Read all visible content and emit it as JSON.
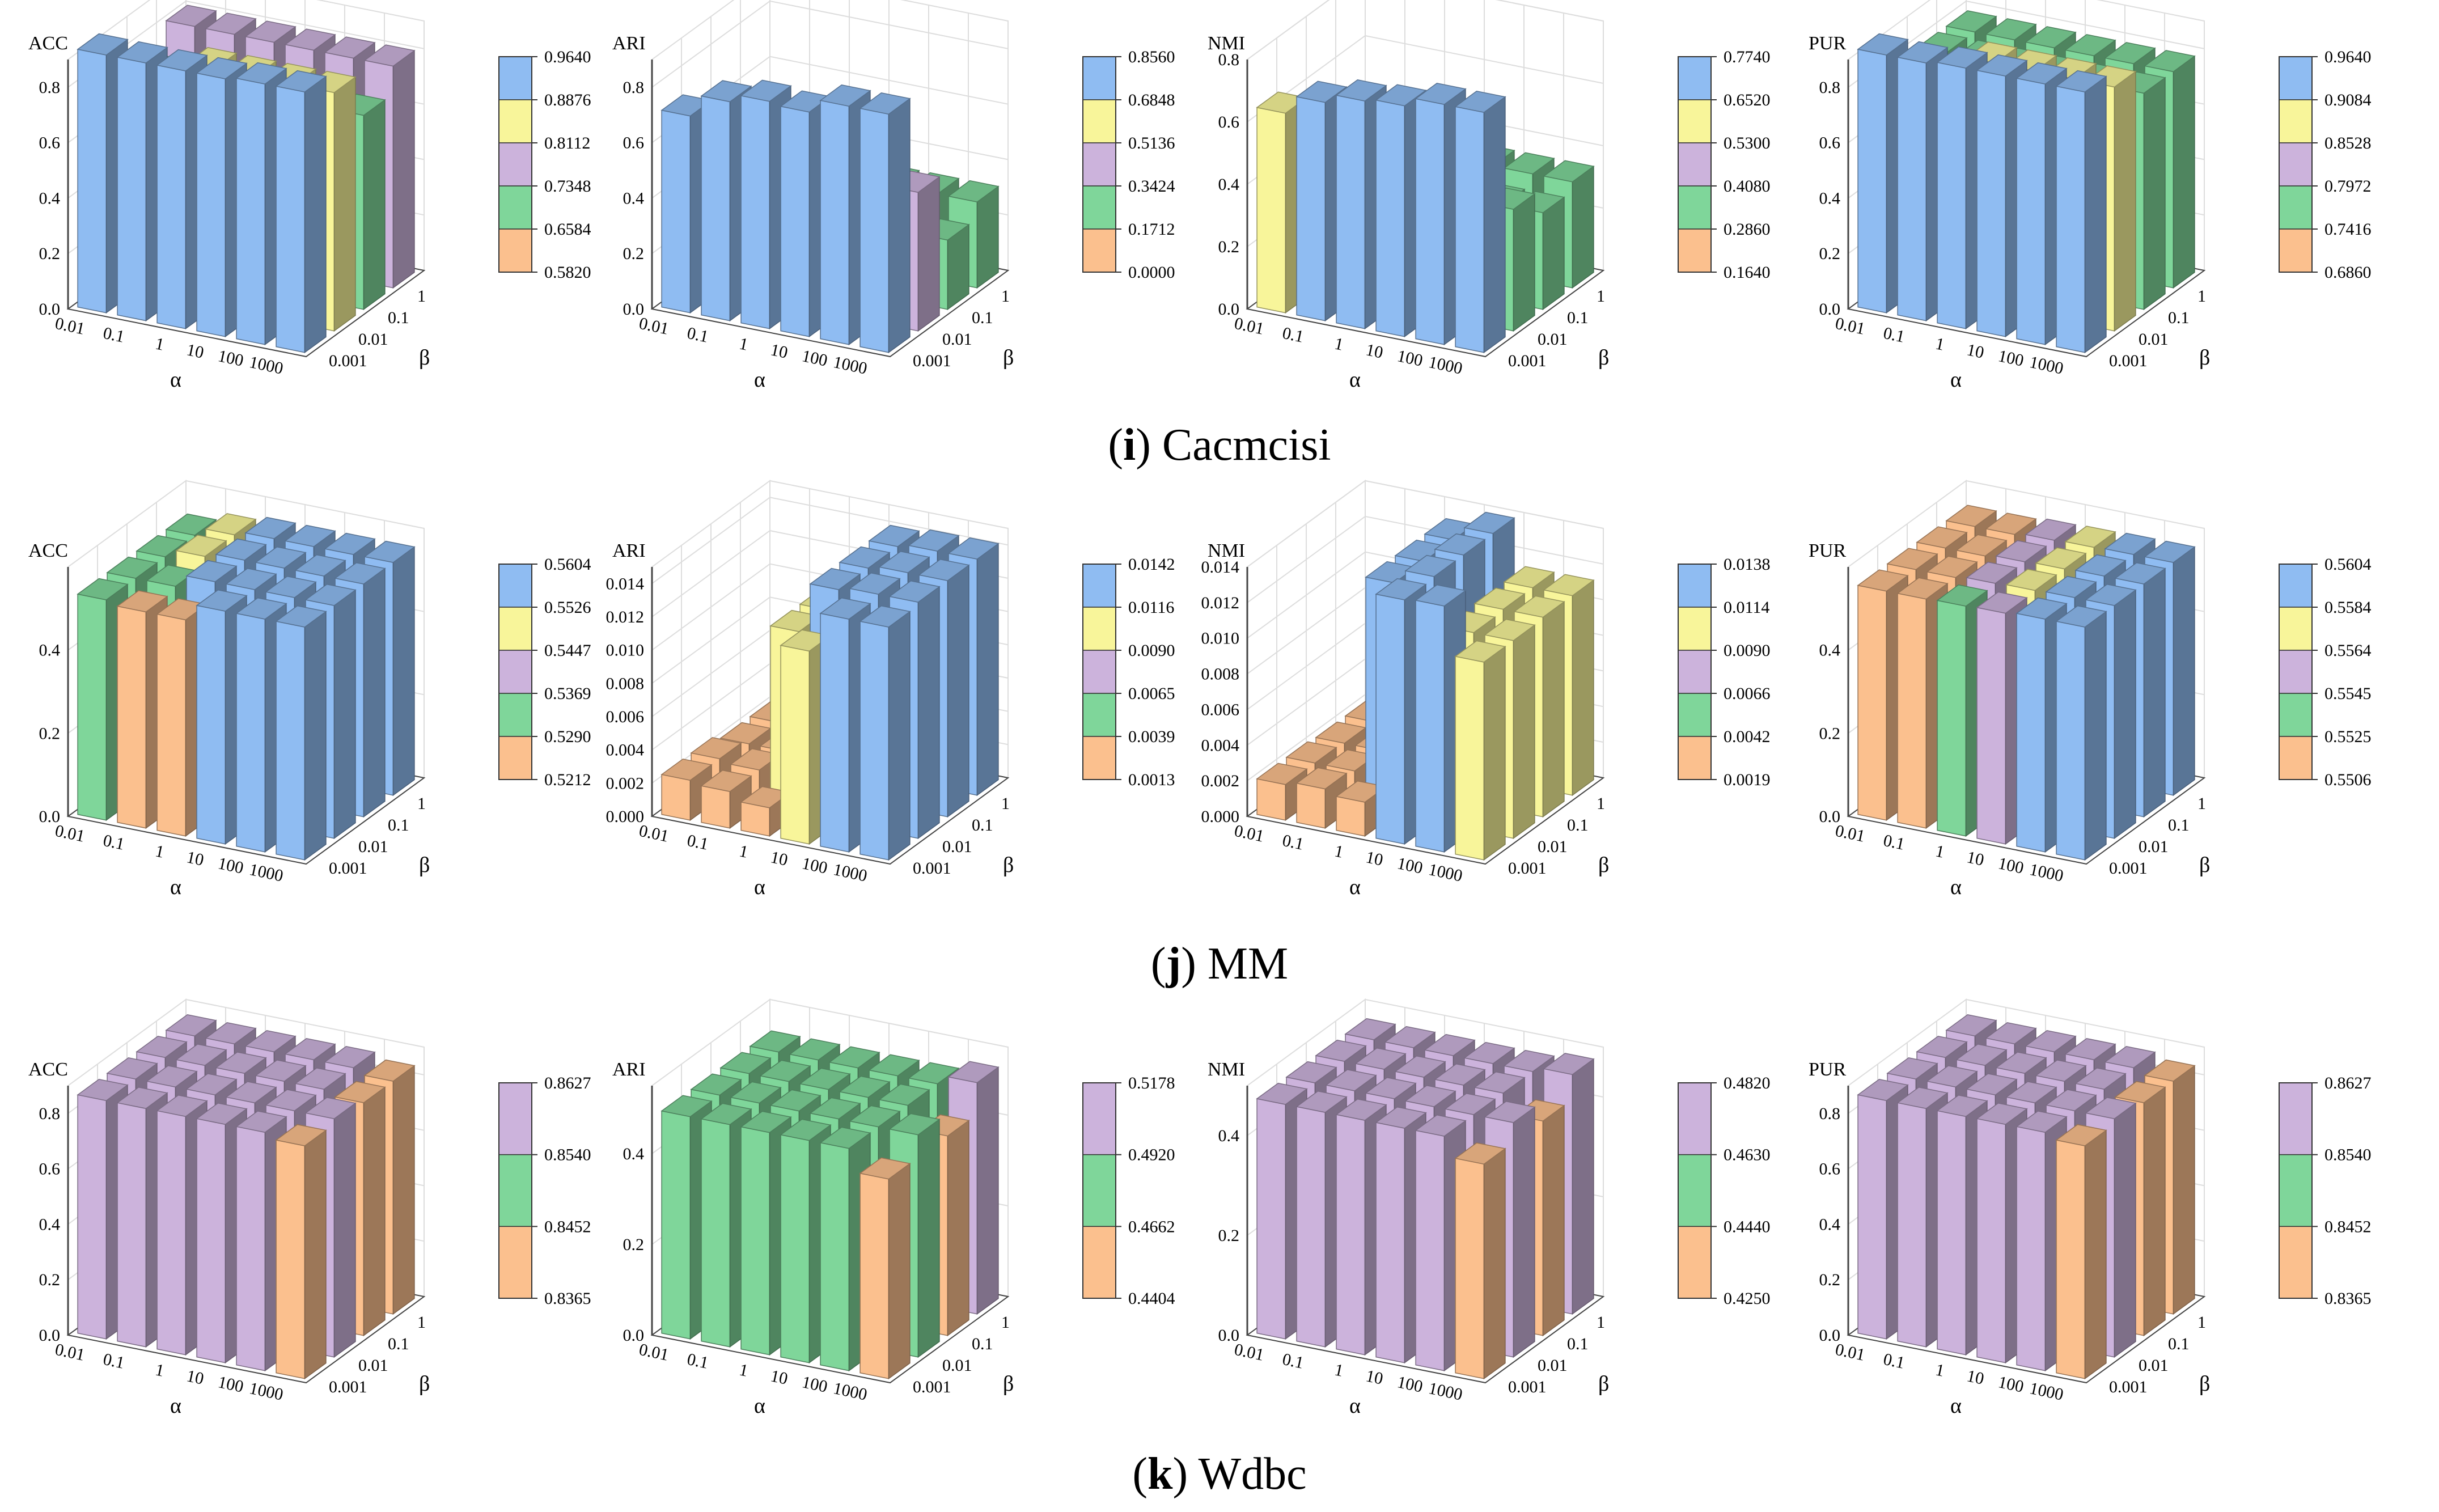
{
  "figure": {
    "rows": [
      {
        "letter": "i",
        "dataset": "Cacmcisi"
      },
      {
        "letter": "j",
        "dataset": "MM"
      },
      {
        "letter": "k",
        "dataset": "Wdbc"
      }
    ],
    "axis_labels": {
      "alpha": "α",
      "beta": "β"
    },
    "alpha_ticks": [
      "0.01",
      "0.1",
      "1",
      "10",
      "100",
      "1000"
    ],
    "beta_ticks": [
      "0.001",
      "0.01",
      "0.1",
      "1"
    ]
  },
  "palette": {
    "blue": "#8fbcf2",
    "yellow": "#f8f59a",
    "purple": "#ccb3dc",
    "green": "#7fd69a",
    "orange": "#fbc08e",
    "pink": "#d6b6e0",
    "frame": "#444444",
    "grid": "#dddddd"
  },
  "chart_data": [
    {
      "type": "bar3d",
      "row": 0,
      "title": "ACC",
      "zlim": [
        0,
        0.9
      ],
      "zticks": [
        "0.0",
        "0.2",
        "0.4",
        "0.6",
        "0.8"
      ],
      "legend": {
        "ticks": [
          "0.9640",
          "0.8876",
          "0.8112",
          "0.7348",
          "0.6584",
          "0.5820"
        ],
        "colors": [
          "blue",
          "yellow",
          "purple",
          "green",
          "orange"
        ]
      },
      "values": [
        [
          0.93,
          0.93,
          0.93,
          0.93,
          0.94,
          0.94
        ],
        [
          0.58,
          0.68,
          0.86,
          0.86,
          0.86,
          0.86
        ],
        [
          0.7,
          0.7,
          0.7,
          0.7,
          0.7,
          0.7
        ],
        [
          0.8,
          0.8,
          0.8,
          0.8,
          0.8,
          0.8
        ]
      ]
    },
    {
      "type": "bar3d",
      "row": 0,
      "title": "ARI",
      "zlim": [
        0,
        0.9
      ],
      "zticks": [
        "0.0",
        "0.2",
        "0.4",
        "0.6",
        "0.8"
      ],
      "legend": {
        "ticks": [
          "0.8560",
          "0.6848",
          "0.5136",
          "0.3424",
          "0.1712",
          "0.0000"
        ],
        "colors": [
          "blue",
          "yellow",
          "purple",
          "green",
          "orange"
        ]
      },
      "values": [
        [
          0.71,
          0.79,
          0.82,
          0.81,
          0.86,
          0.86
        ],
        [
          0.0,
          0.19,
          0.5,
          0.5,
          0.5,
          0.5
        ],
        [
          0.25,
          0.25,
          0.25,
          0.25,
          0.25,
          0.25
        ],
        [
          0.31,
          0.31,
          0.31,
          0.31,
          0.31,
          0.31
        ]
      ]
    },
    {
      "type": "bar3d",
      "row": 0,
      "title": "NMI",
      "zlim": [
        0,
        0.8
      ],
      "zticks": [
        "0.0",
        "0.2",
        "0.4",
        "0.6",
        "0.8"
      ],
      "legend": {
        "ticks": [
          "0.7740",
          "0.6520",
          "0.5300",
          "0.4080",
          "0.2860",
          "0.1640"
        ],
        "colors": [
          "blue",
          "yellow",
          "purple",
          "green",
          "orange"
        ]
      },
      "values": [
        [
          0.64,
          0.7,
          0.73,
          0.74,
          0.77,
          0.77
        ],
        [
          0.19,
          0.28,
          0.39,
          0.39,
          0.39,
          0.39
        ],
        [
          0.31,
          0.31,
          0.31,
          0.31,
          0.31,
          0.31
        ],
        [
          0.34,
          0.34,
          0.34,
          0.34,
          0.34,
          0.34
        ]
      ]
    },
    {
      "type": "bar3d",
      "row": 0,
      "title": "PUR",
      "zlim": [
        0,
        0.9
      ],
      "zticks": [
        "0.0",
        "0.2",
        "0.4",
        "0.6",
        "0.8"
      ],
      "legend": {
        "ticks": [
          "0.9640",
          "0.9084",
          "0.8528",
          "0.7972",
          "0.7416",
          "0.6860"
        ],
        "colors": [
          "blue",
          "yellow",
          "purple",
          "green",
          "orange"
        ]
      },
      "values": [
        [
          0.93,
          0.93,
          0.94,
          0.94,
          0.94,
          0.94
        ],
        [
          0.7,
          0.7,
          0.88,
          0.88,
          0.88,
          0.88
        ],
        [
          0.78,
          0.78,
          0.78,
          0.78,
          0.78,
          0.78
        ],
        [
          0.78,
          0.78,
          0.78,
          0.78,
          0.78,
          0.78
        ]
      ]
    },
    {
      "type": "bar3d",
      "row": 1,
      "title": "ACC",
      "zlim": [
        0,
        0.6
      ],
      "zticks": [
        "0.0",
        "0.2",
        "0.4"
      ],
      "legend": {
        "ticks": [
          "0.5604",
          "0.5526",
          "0.5447",
          "0.5369",
          "0.5290",
          "0.5212"
        ],
        "colors": [
          "blue",
          "yellow",
          "purple",
          "green",
          "orange"
        ]
      },
      "values": [
        [
          0.53,
          0.52,
          0.52,
          0.56,
          0.56,
          0.56
        ],
        [
          0.53,
          0.53,
          0.56,
          0.56,
          0.56,
          0.56
        ],
        [
          0.53,
          0.55,
          0.56,
          0.56,
          0.56,
          0.56
        ],
        [
          0.53,
          0.55,
          0.56,
          0.56,
          0.56,
          0.56
        ]
      ]
    },
    {
      "type": "bar3d",
      "row": 1,
      "title": "ARI",
      "zlim": [
        0,
        0.015
      ],
      "zticks": [
        "0.000",
        "0.002",
        "0.004",
        "0.006",
        "0.008",
        "0.010",
        "0.012",
        "0.014"
      ],
      "legend": {
        "ticks": [
          "0.0142",
          "0.0116",
          "0.0090",
          "0.0065",
          "0.0039",
          "0.0013"
        ],
        "colors": [
          "blue",
          "yellow",
          "purple",
          "green",
          "orange"
        ]
      },
      "values": [
        [
          0.0024,
          0.0022,
          0.0017,
          0.0116,
          0.014,
          0.014
        ],
        [
          0.0024,
          0.0022,
          0.011,
          0.014,
          0.0142,
          0.0142
        ],
        [
          0.002,
          0.002,
          0.011,
          0.014,
          0.0142,
          0.0142
        ],
        [
          0.002,
          0.002,
          0.011,
          0.014,
          0.0142,
          0.0142
        ]
      ]
    },
    {
      "type": "bar3d",
      "row": 1,
      "title": "NMI",
      "zlim": [
        0,
        0.014
      ],
      "zticks": [
        "0.000",
        "0.002",
        "0.004",
        "0.006",
        "0.008",
        "0.010",
        "0.012",
        "0.014"
      ],
      "legend": {
        "ticks": [
          "0.0138",
          "0.0114",
          "0.0090",
          "0.0066",
          "0.0042",
          "0.0019"
        ],
        "colors": [
          "blue",
          "yellow",
          "purple",
          "green",
          "orange"
        ]
      },
      "values": [
        [
          0.002,
          0.0022,
          0.0019,
          0.0137,
          0.0138,
          0.0111
        ],
        [
          0.002,
          0.002,
          0.013,
          0.0138,
          0.0111,
          0.0111
        ],
        [
          0.0019,
          0.0019,
          0.013,
          0.0138,
          0.0112,
          0.0112
        ],
        [
          0.0019,
          0.0019,
          0.013,
          0.0138,
          0.0112,
          0.0112
        ]
      ]
    },
    {
      "type": "bar3d",
      "row": 1,
      "title": "PUR",
      "zlim": [
        0,
        0.6
      ],
      "zticks": [
        "0.0",
        "0.2",
        "0.4"
      ],
      "legend": {
        "ticks": [
          "0.5604",
          "0.5584",
          "0.5564",
          "0.5545",
          "0.5525",
          "0.5506"
        ],
        "colors": [
          "blue",
          "yellow",
          "purple",
          "green",
          "orange"
        ]
      },
      "values": [
        [
          0.551,
          0.551,
          0.553,
          0.555,
          0.56,
          0.56
        ],
        [
          0.551,
          0.551,
          0.556,
          0.558,
          0.56,
          0.56
        ],
        [
          0.551,
          0.551,
          0.556,
          0.558,
          0.56,
          0.56
        ],
        [
          0.551,
          0.551,
          0.556,
          0.558,
          0.56,
          0.56
        ]
      ]
    },
    {
      "type": "bar3d",
      "row": 2,
      "title": "ACC",
      "zlim": [
        0,
        0.9
      ],
      "zticks": [
        "0.0",
        "0.2",
        "0.4",
        "0.6",
        "0.8"
      ],
      "legend": {
        "ticks": [
          "0.8627",
          "0.8540",
          "0.8452",
          "0.8365"
        ],
        "colors": [
          "purple",
          "green",
          "orange"
        ]
      },
      "values": [
        [
          0.86,
          0.86,
          0.86,
          0.86,
          0.86,
          0.84
        ],
        [
          0.86,
          0.86,
          0.86,
          0.86,
          0.86,
          0.86
        ],
        [
          0.86,
          0.86,
          0.86,
          0.86,
          0.86,
          0.84
        ],
        [
          0.86,
          0.86,
          0.86,
          0.86,
          0.86,
          0.84
        ]
      ]
    },
    {
      "type": "bar3d",
      "row": 2,
      "title": "ARI",
      "zlim": [
        0,
        0.55
      ],
      "zticks": [
        "0.0",
        "0.2",
        "0.4"
      ],
      "legend": {
        "ticks": [
          "0.5178",
          "0.4920",
          "0.4662",
          "0.4404"
        ],
        "colors": [
          "purple",
          "green",
          "orange"
        ]
      },
      "values": [
        [
          0.49,
          0.49,
          0.49,
          0.49,
          0.49,
          0.44
        ],
        [
          0.49,
          0.49,
          0.49,
          0.49,
          0.49,
          0.49
        ],
        [
          0.49,
          0.49,
          0.49,
          0.49,
          0.49,
          0.44
        ],
        [
          0.49,
          0.49,
          0.49,
          0.49,
          0.49,
          0.51
        ]
      ]
    },
    {
      "type": "bar3d",
      "row": 2,
      "title": "NMI",
      "zlim": [
        0,
        0.5
      ],
      "zticks": [
        "0.0",
        "0.2",
        "0.4"
      ],
      "legend": {
        "ticks": [
          "0.4820",
          "0.4630",
          "0.4440",
          "0.4250"
        ],
        "colors": [
          "purple",
          "green",
          "orange"
        ]
      },
      "values": [
        [
          0.47,
          0.47,
          0.47,
          0.47,
          0.47,
          0.43
        ],
        [
          0.47,
          0.47,
          0.47,
          0.47,
          0.47,
          0.47
        ],
        [
          0.47,
          0.47,
          0.47,
          0.47,
          0.47,
          0.43
        ],
        [
          0.47,
          0.47,
          0.47,
          0.47,
          0.47,
          0.48
        ]
      ]
    },
    {
      "type": "bar3d",
      "row": 2,
      "title": "PUR",
      "zlim": [
        0,
        0.9
      ],
      "zticks": [
        "0.0",
        "0.2",
        "0.4",
        "0.6",
        "0.8"
      ],
      "legend": {
        "ticks": [
          "0.8627",
          "0.8540",
          "0.8452",
          "0.8365"
        ],
        "colors": [
          "purple",
          "green",
          "orange"
        ]
      },
      "values": [
        [
          0.86,
          0.86,
          0.86,
          0.86,
          0.86,
          0.84
        ],
        [
          0.86,
          0.86,
          0.86,
          0.86,
          0.86,
          0.86
        ],
        [
          0.86,
          0.86,
          0.86,
          0.86,
          0.86,
          0.84
        ],
        [
          0.86,
          0.86,
          0.86,
          0.86,
          0.86,
          0.84
        ]
      ]
    }
  ]
}
